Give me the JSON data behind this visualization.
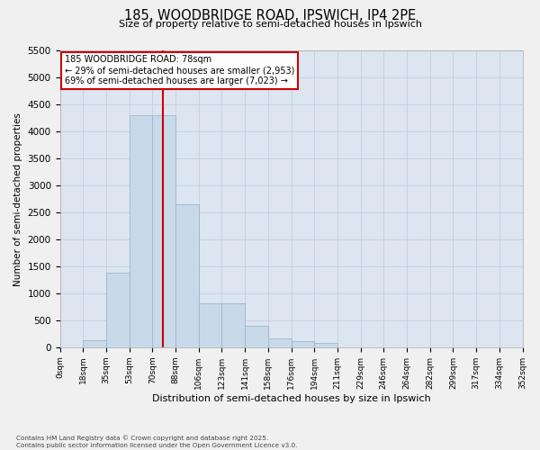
{
  "title_line1": "185, WOODBRIDGE ROAD, IPSWICH, IP4 2PE",
  "title_line2": "Size of property relative to semi-detached houses in Ipswich",
  "xlabel": "Distribution of semi-detached houses by size in Ipswich",
  "ylabel": "Number of semi-detached properties",
  "bar_color": "#c8d9ea",
  "bar_edgecolor": "#9ab8d2",
  "grid_color": "#c5cedd",
  "plot_bg": "#dce5f0",
  "fig_bg": "#f0f0f0",
  "red": "#cc0000",
  "annotation_text": "185 WOODBRIDGE ROAD: 78sqm\n← 29% of semi-detached houses are smaller (2,953)\n69% of semi-detached houses are larger (7,023) →",
  "property_bin_idx": 4,
  "footnote": "Contains HM Land Registry data © Crown copyright and database right 2025.\nContains public sector information licensed under the Open Government Licence v3.0.",
  "bin_labels": [
    "0sqm",
    "18sqm",
    "35sqm",
    "53sqm",
    "70sqm",
    "88sqm",
    "106sqm",
    "123sqm",
    "141sqm",
    "158sqm",
    "176sqm",
    "194sqm",
    "211sqm",
    "229sqm",
    "246sqm",
    "264sqm",
    "282sqm",
    "299sqm",
    "317sqm",
    "334sqm",
    "352sqm"
  ],
  "counts": [
    5,
    130,
    1380,
    4300,
    4300,
    2650,
    820,
    820,
    390,
    160,
    115,
    85,
    5,
    5,
    5,
    5,
    5,
    5,
    5,
    5
  ],
  "ylim": [
    0,
    5500
  ],
  "yticks": [
    0,
    500,
    1000,
    1500,
    2000,
    2500,
    3000,
    3500,
    4000,
    4500,
    5000,
    5500
  ],
  "n_bins": 20
}
